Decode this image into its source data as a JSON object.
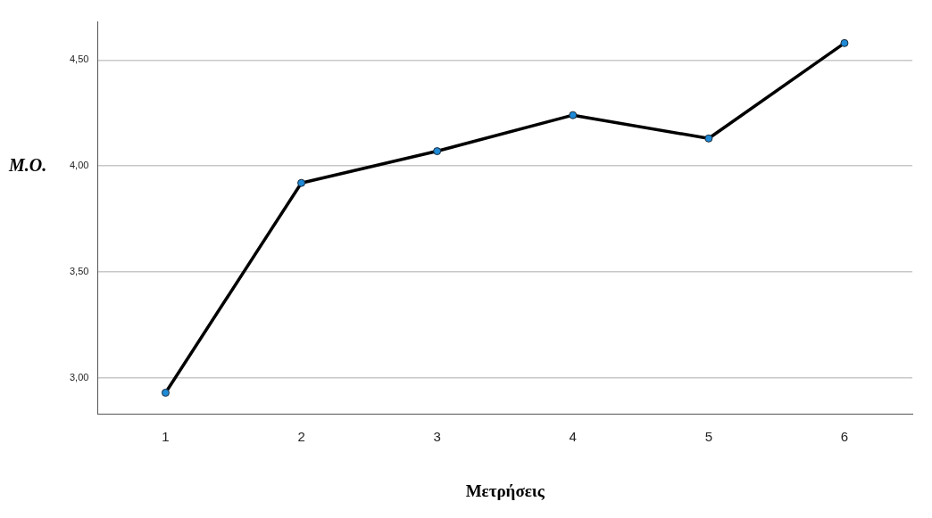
{
  "chart_data": {
    "type": "line",
    "xlabel": "Μετρήσεις",
    "ylabel": "Μ.Ο.",
    "categories": [
      "1",
      "2",
      "3",
      "4",
      "5",
      "6"
    ],
    "series": [
      {
        "color": "#000000",
        "values": [
          2.93,
          3.92,
          4.07,
          4.24,
          4.13,
          4.58
        ]
      }
    ],
    "ylim": [
      2.83,
      4.68
    ],
    "yticks": [
      {
        "value": 3,
        "label": "3,00"
      },
      {
        "value": 3.5,
        "label": "3,50"
      },
      {
        "value": 4,
        "label": "4,00"
      },
      {
        "value": 4.5,
        "label": "4,50"
      }
    ],
    "grid": "y",
    "legend": false,
    "marker": "circle",
    "line_style": "solid"
  }
}
